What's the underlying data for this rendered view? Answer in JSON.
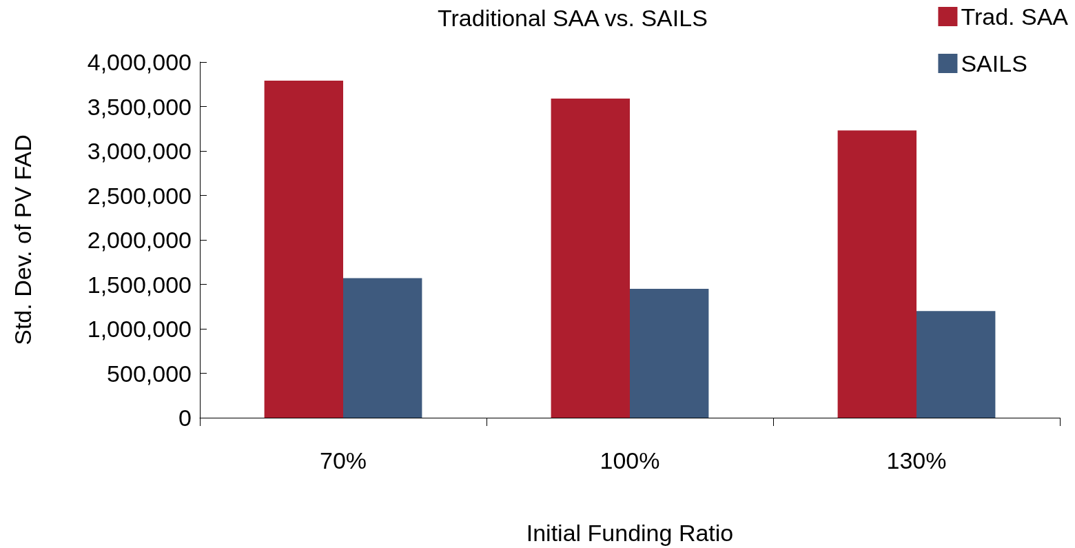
{
  "chart_data": {
    "type": "bar",
    "title": "Traditional SAA vs. SAILS",
    "xlabel": "Initial Funding Ratio",
    "ylabel": "Std. Dev. of PV FAD",
    "categories": [
      "70%",
      "100%",
      "130%"
    ],
    "series": [
      {
        "name": "Trad. SAA",
        "color": "#ae1e2e",
        "values": [
          3790000,
          3590000,
          3230000
        ]
      },
      {
        "name": "SAILS",
        "color": "#3e5a7e",
        "values": [
          1570000,
          1450000,
          1200000
        ]
      }
    ],
    "ylim": [
      0,
      4000000
    ],
    "yticks": [
      {
        "value": 0,
        "label": "0"
      },
      {
        "value": 500000,
        "label": "500,000"
      },
      {
        "value": 1000000,
        "label": "1,000,000"
      },
      {
        "value": 1500000,
        "label": "1,500,000"
      },
      {
        "value": 2000000,
        "label": "2,000,000"
      },
      {
        "value": 2500000,
        "label": "2,500,000"
      },
      {
        "value": 3000000,
        "label": "3,000,000"
      },
      {
        "value": 3500000,
        "label": "3,500,000"
      },
      {
        "value": 4000000,
        "label": "4,000,000"
      }
    ],
    "grid": false,
    "legend": "top right"
  }
}
